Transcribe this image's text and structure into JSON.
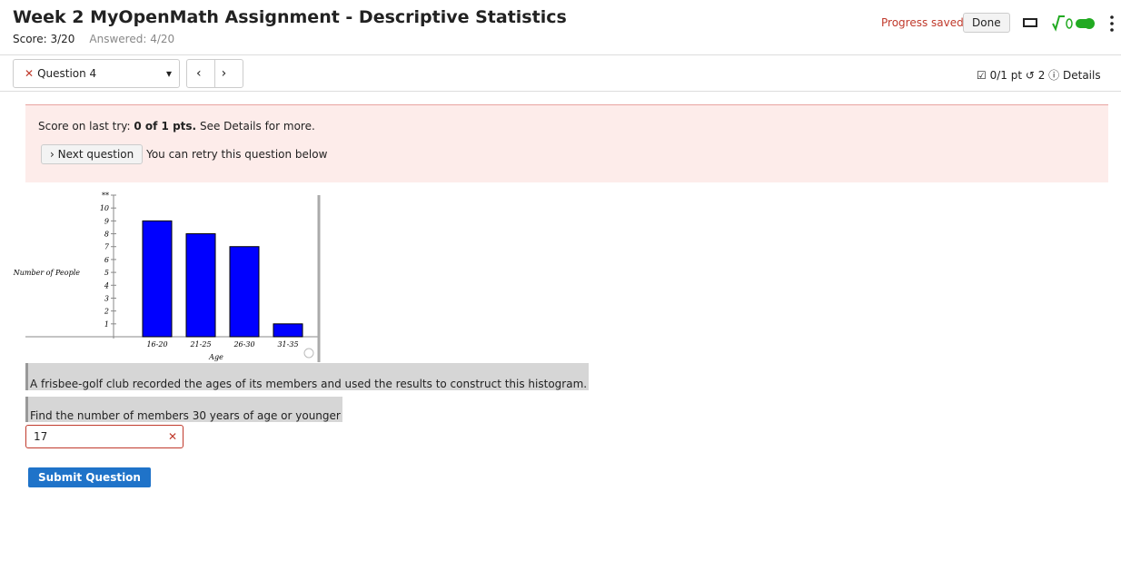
{
  "header": {
    "title": "Week 2 MyOpenMath Assignment - Descriptive Statistics",
    "score": "Score: 3/20",
    "answered": "Answered: 4/20",
    "progress": "Progress saved",
    "done": "Done"
  },
  "toolbar": {
    "question": "Question 4",
    "points": "0/1 pt",
    "retries": "2",
    "details": "Details"
  },
  "alert": {
    "prefix": "Score on last try:",
    "score": "0 of 1 pts.",
    "suffix": "See Details for more.",
    "next": "Next question",
    "retry": "You can retry this question below"
  },
  "chart_data": {
    "type": "bar",
    "categories": [
      "16-20",
      "21-25",
      "26-30",
      "31-35"
    ],
    "values": [
      9,
      8,
      7,
      1
    ],
    "color": "#0000ff",
    "ylabel": "Number of People",
    "xlabel": "Age",
    "ylim": [
      0,
      11
    ],
    "yticks": [
      1,
      2,
      3,
      4,
      5,
      6,
      7,
      8,
      9,
      10,
      {
        "value": 11,
        "label": "**"
      }
    ]
  },
  "question": {
    "text1": "A frisbee-golf club recorded the ages of its members and used the results to construct this histogram.",
    "text2": "Find the number of members 30 years of age or younger",
    "answer": "17",
    "submit": "Submit Question"
  }
}
